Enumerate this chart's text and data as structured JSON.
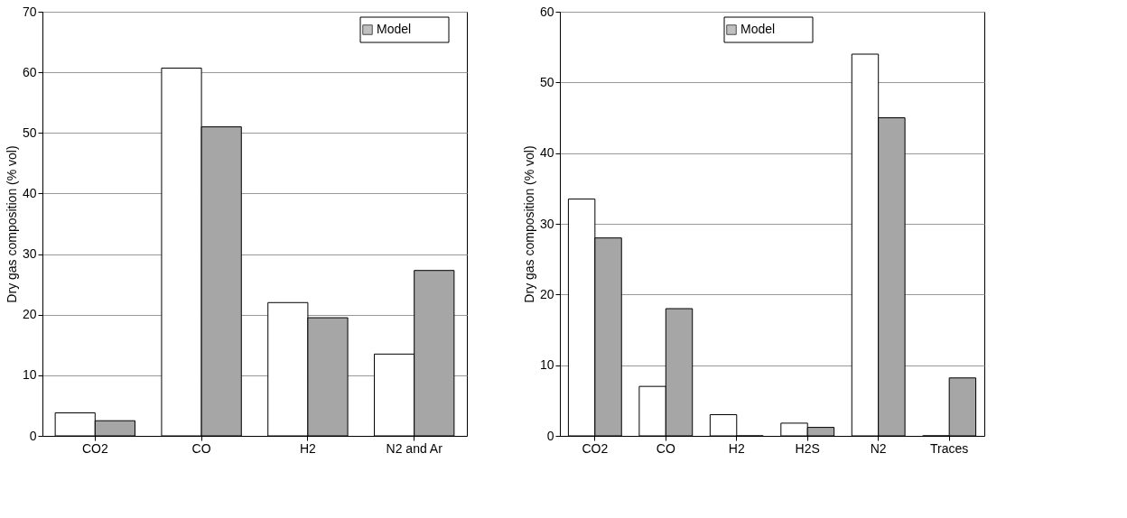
{
  "chart_data": [
    {
      "type": "bar",
      "ylabel": "Dry gas composition (% vol)",
      "categories": [
        "CO2",
        "CO",
        "H2",
        "N2 and Ar"
      ],
      "series": [
        {
          "color": "#ffffff",
          "values": [
            3.8,
            60.7,
            22,
            13.5
          ]
        },
        {
          "name": "Model",
          "color": "#a6a6a6",
          "values": [
            2.5,
            51,
            19.5,
            27.3
          ]
        }
      ],
      "ylim": [
        0,
        70
      ],
      "yticks": [
        0,
        10,
        20,
        30,
        40,
        50,
        60,
        70
      ],
      "grid": "y",
      "legend": "top right"
    },
    {
      "type": "bar",
      "ylabel": "Dry gas composition (% vol)",
      "categories": [
        "CO2",
        "CO",
        "H2",
        "H2S",
        "N2",
        "Traces"
      ],
      "series": [
        {
          "color": "#ffffff",
          "values": [
            33.5,
            7,
            3,
            1.8,
            54,
            0
          ]
        },
        {
          "name": "Model",
          "color": "#a6a6a6",
          "values": [
            28,
            18,
            0,
            1.2,
            45,
            8.2
          ]
        }
      ],
      "ylim": [
        0,
        60
      ],
      "yticks": [
        0,
        10,
        20,
        30,
        40,
        50,
        60
      ],
      "grid": "y",
      "legend": "top"
    }
  ]
}
